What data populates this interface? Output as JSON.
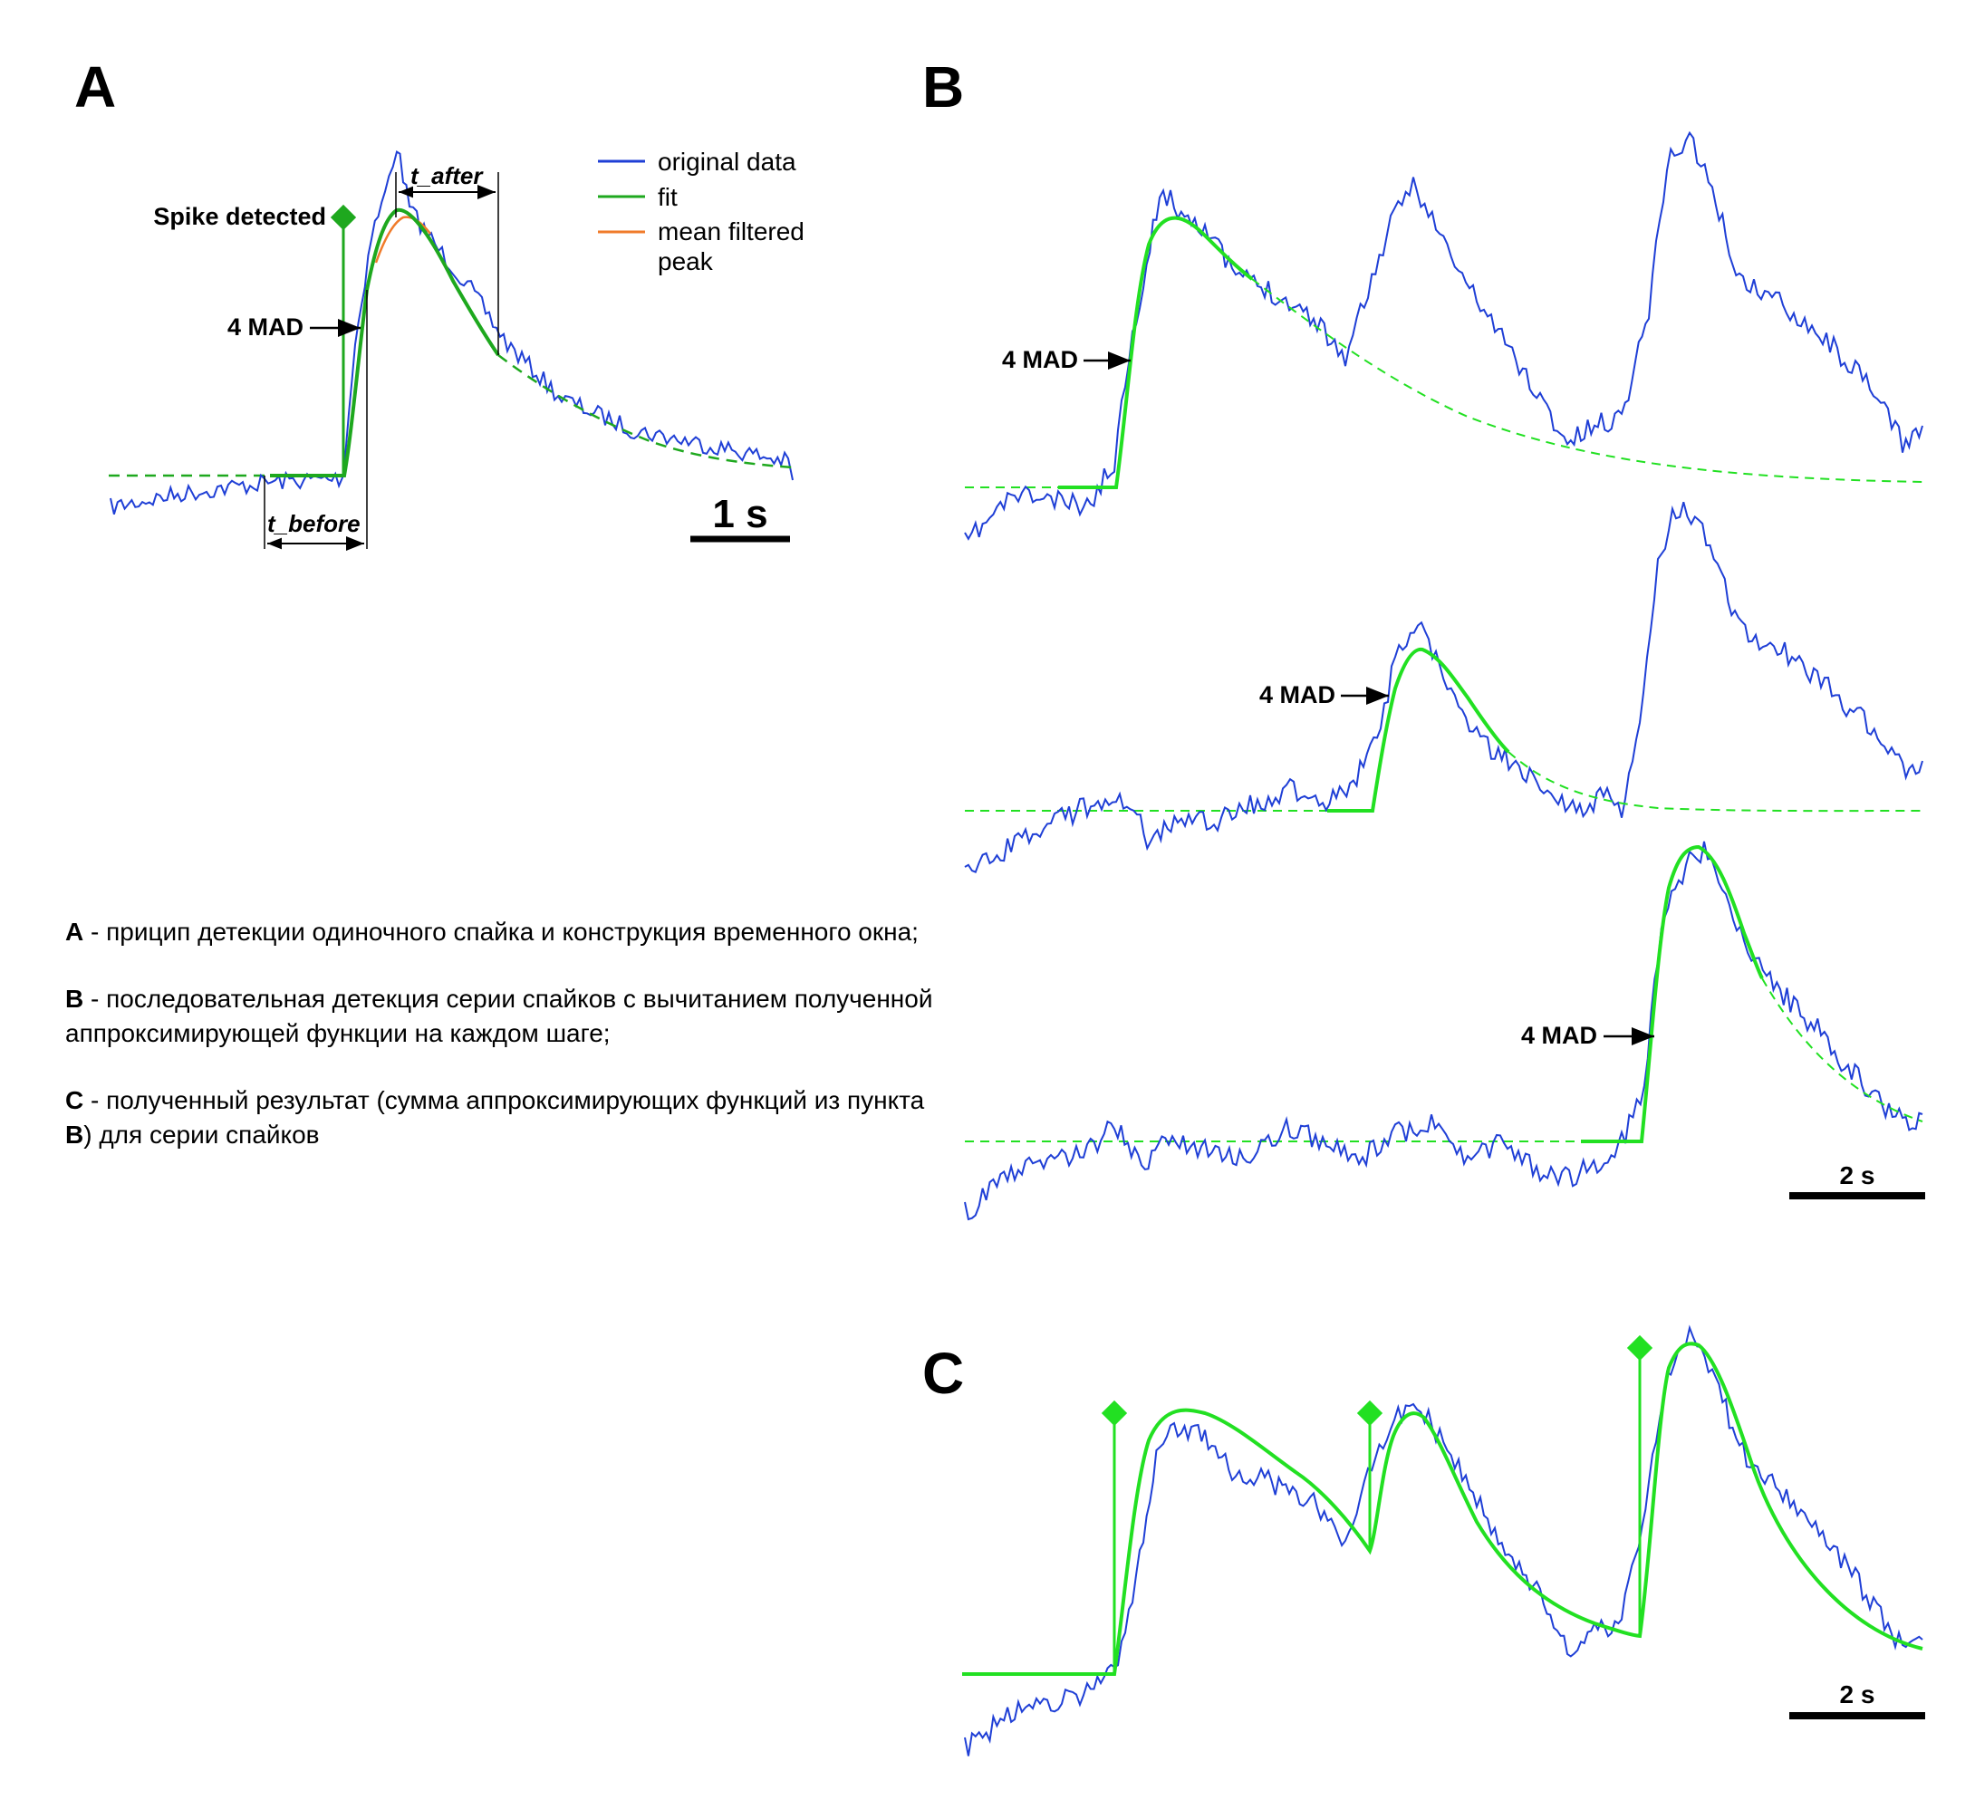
{
  "panel_a": {
    "letter": "A",
    "spike_detected": "Spike detected",
    "threshold": "4 MAD",
    "t_after": "t_after",
    "t_before": "t_before",
    "scalebar": "1 s",
    "legend": [
      {
        "label": "original data",
        "color": "#1f3fd6"
      },
      {
        "label": "fit",
        "color": "#1ea81e"
      },
      {
        "label": "mean filtered",
        "color": "#f07b2a"
      },
      {
        "label": "peak",
        "color": ""
      }
    ]
  },
  "panel_b": {
    "letter": "B",
    "threshold_1": "4 MAD",
    "threshold_2": "4 MAD",
    "threshold_3": "4 MAD",
    "scalebar": "2 s"
  },
  "panel_c": {
    "letter": "C",
    "scalebar": "2 s"
  },
  "caption": {
    "a_key": "A",
    "a_text": "  - прицип детекции одиночного спайка и конструкция временного окна;",
    "b_key": "B",
    "b_text": " - последовательная детекция серии спайков с  вычитанием полученной аппроксимирующей функции на каждом шаге;",
    "c_key": "C",
    "c_text_1": " - полученный результат (сумма аппроксимирующих функций из пункта ",
    "c_text_key": "B",
    "c_text_2": ") для серии спайков"
  },
  "colors": {
    "trace": "#1f3fd6",
    "fit_a": "#1ea81e",
    "fit_b": "#22e022",
    "filtered": "#f07b2a"
  }
}
